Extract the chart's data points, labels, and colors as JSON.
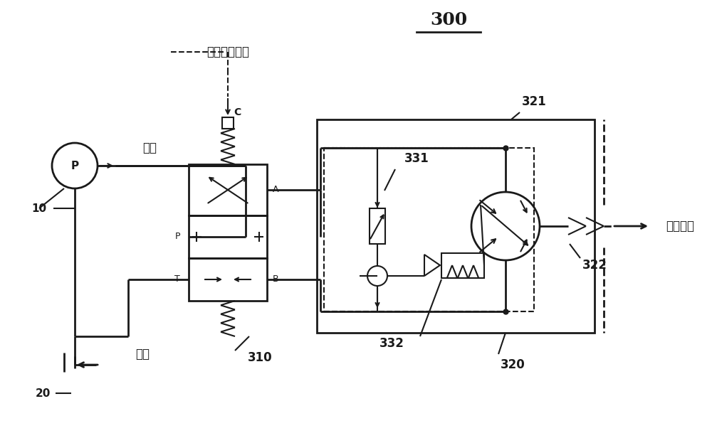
{
  "title": "300",
  "title_underline": true,
  "bg_color": "#ffffff",
  "line_color": "#1a1a1a",
  "label_10": "10",
  "label_20": "20",
  "label_p": "P",
  "label_supply": "供油",
  "label_return": "回油",
  "label_control": "－－控制指令",
  "label_310": "310",
  "label_320": "320",
  "label_321": "321",
  "label_322": "322",
  "label_331": "331",
  "label_332": "332",
  "label_drive": "驱动舱门",
  "label_A": "A",
  "label_B": "B",
  "label_C": "C",
  "label_P_port": "P",
  "label_T_port": "T"
}
